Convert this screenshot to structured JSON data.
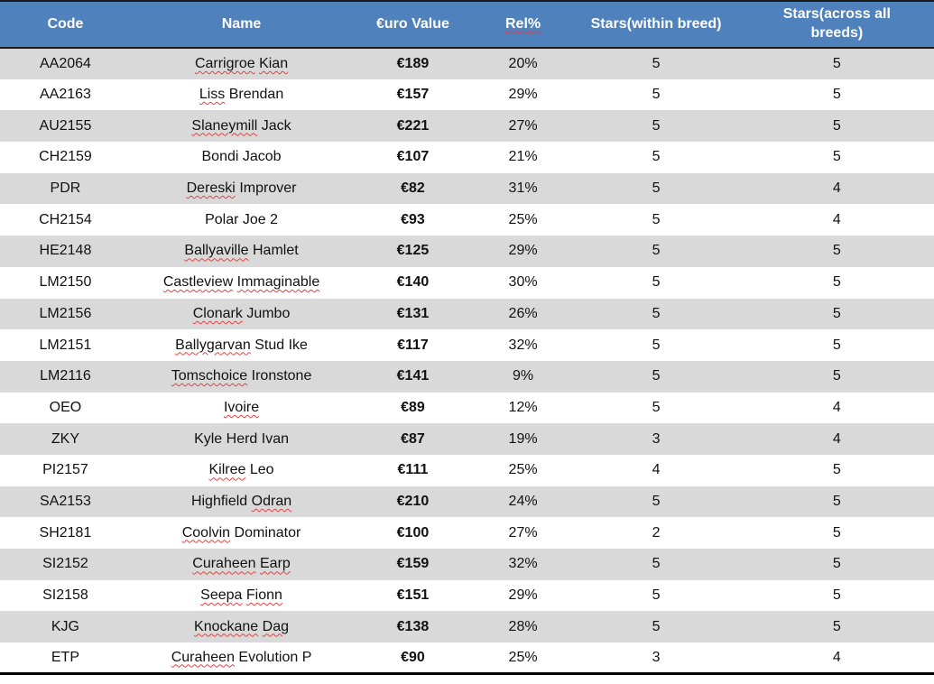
{
  "colors": {
    "header_bg": "#4f81bd",
    "header_text": "#ffffff",
    "row_alt_bg": "#d9d9d9",
    "row_bg": "#ffffff",
    "border_dark": "#1a1a1a",
    "squiggle": "#e84040",
    "text": "#111111"
  },
  "table": {
    "columns": [
      {
        "key": "code",
        "label": "Code",
        "width_pct": 14.0,
        "bold_values": false,
        "squiggle": false
      },
      {
        "key": "name",
        "label": "Name",
        "width_pct": 23.7,
        "bold_values": false,
        "squiggle": false
      },
      {
        "key": "euro",
        "label": "€uro Value",
        "width_pct": 13.0,
        "bold_values": true,
        "squiggle": false
      },
      {
        "key": "rel",
        "label": "Rel%",
        "width_pct": 10.6,
        "bold_values": false,
        "squiggle": true
      },
      {
        "key": "stars_within",
        "label": "Stars(within breed)",
        "width_pct": 17.9,
        "bold_values": false,
        "squiggle": false
      },
      {
        "key": "stars_across",
        "label": "Stars(across all breeds)",
        "width_pct": 20.8,
        "bold_values": false,
        "squiggle": false
      }
    ],
    "rows": [
      {
        "code": "AA2064",
        "name": "Carrigroe Kian",
        "name_misspelled_words": [
          "Carrigroe",
          "Kian"
        ],
        "euro": "€189",
        "rel": "20%",
        "stars_within": "5",
        "stars_across": "5"
      },
      {
        "code": "AA2163",
        "name": "Liss Brendan",
        "name_misspelled_words": [
          "Liss"
        ],
        "euro": "€157",
        "rel": "29%",
        "stars_within": "5",
        "stars_across": "5"
      },
      {
        "code": "AU2155",
        "name": "Slaneymill Jack",
        "name_misspelled_words": [
          "Slaneymill"
        ],
        "euro": "€221",
        "rel": "27%",
        "stars_within": "5",
        "stars_across": "5"
      },
      {
        "code": "CH2159",
        "name": "Bondi Jacob",
        "name_misspelled_words": [],
        "euro": "€107",
        "rel": "21%",
        "stars_within": "5",
        "stars_across": "5"
      },
      {
        "code": "PDR",
        "name": "Dereski Improver",
        "name_misspelled_words": [
          "Dereski"
        ],
        "euro": "€82",
        "rel": "31%",
        "stars_within": "5",
        "stars_across": "4"
      },
      {
        "code": "CH2154",
        "name": "Polar Joe 2",
        "name_misspelled_words": [],
        "euro": "€93",
        "rel": "25%",
        "stars_within": "5",
        "stars_across": "4"
      },
      {
        "code": "HE2148",
        "name": "Ballyaville Hamlet",
        "name_misspelled_words": [
          "Ballyaville"
        ],
        "euro": "€125",
        "rel": "29%",
        "stars_within": "5",
        "stars_across": "5"
      },
      {
        "code": "LM2150",
        "name": "Castleview Immaginable",
        "name_misspelled_words": [
          "Castleview",
          "Immaginable"
        ],
        "euro": "€140",
        "rel": "30%",
        "stars_within": "5",
        "stars_across": "5"
      },
      {
        "code": "LM2156",
        "name": "Clonark Jumbo",
        "name_misspelled_words": [
          "Clonark"
        ],
        "euro": "€131",
        "rel": "26%",
        "stars_within": "5",
        "stars_across": "5"
      },
      {
        "code": "LM2151",
        "name": "Ballygarvan Stud Ike",
        "name_misspelled_words": [
          "Ballygarvan"
        ],
        "euro": "€117",
        "rel": "32%",
        "stars_within": "5",
        "stars_across": "5"
      },
      {
        "code": "LM2116",
        "name": "Tomschoice Ironstone",
        "name_misspelled_words": [
          "Tomschoice"
        ],
        "euro": "€141",
        "rel": "9%",
        "stars_within": "5",
        "stars_across": "5"
      },
      {
        "code": "OEO",
        "name": "Ivoire",
        "name_misspelled_words": [
          "Ivoire"
        ],
        "euro": "€89",
        "rel": "12%",
        "stars_within": "5",
        "stars_across": "4"
      },
      {
        "code": "ZKY",
        "name": "Kyle Herd Ivan",
        "name_misspelled_words": [],
        "euro": "€87",
        "rel": "19%",
        "stars_within": "3",
        "stars_across": "4"
      },
      {
        "code": "PI2157",
        "name": "Kilree Leo",
        "name_misspelled_words": [
          "Kilree"
        ],
        "euro": "€111",
        "rel": "25%",
        "stars_within": "4",
        "stars_across": "5"
      },
      {
        "code": "SA2153",
        "name": "Highfield Odran",
        "name_misspelled_words": [
          "Odran"
        ],
        "euro": "€210",
        "rel": "24%",
        "stars_within": "5",
        "stars_across": "5"
      },
      {
        "code": "SH2181",
        "name": "Coolvin Dominator",
        "name_misspelled_words": [
          "Coolvin"
        ],
        "euro": "€100",
        "rel": "27%",
        "stars_within": "2",
        "stars_across": "5"
      },
      {
        "code": "SI2152",
        "name": "Curaheen Earp",
        "name_misspelled_words": [
          "Curaheen",
          "Earp"
        ],
        "euro": "€159",
        "rel": "32%",
        "stars_within": "5",
        "stars_across": "5"
      },
      {
        "code": "SI2158",
        "name": "Seepa Fionn",
        "name_misspelled_words": [
          "Seepa",
          "Fionn"
        ],
        "euro": "€151",
        "rel": "29%",
        "stars_within": "5",
        "stars_across": "5"
      },
      {
        "code": "KJG",
        "name": "Knockane Dag",
        "name_misspelled_words": [
          "Knockane",
          "Dag"
        ],
        "euro": "€138",
        "rel": "28%",
        "stars_within": "5",
        "stars_across": "5"
      },
      {
        "code": "ETP",
        "name": "Curaheen Evolution P",
        "name_misspelled_words": [
          "Curaheen"
        ],
        "euro": "€90",
        "rel": "25%",
        "stars_within": "3",
        "stars_across": "4"
      }
    ]
  }
}
